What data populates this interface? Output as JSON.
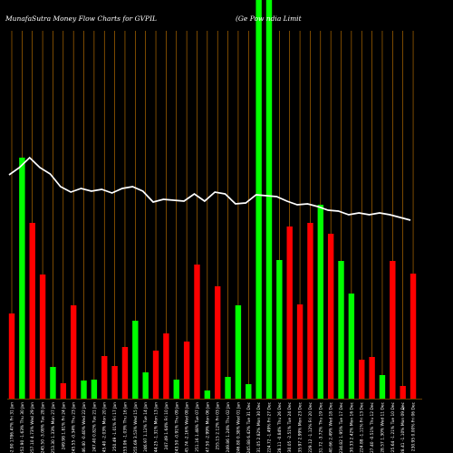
{
  "chart_data": {
    "type": "bar",
    "title": "MunafaSutra  Money Flow  Charts for GVPIL",
    "subtitle": "(Ge    Pow    ndia  Limit",
    "ylim": [
      0,
      440
    ],
    "grid": "vertical",
    "colors": {
      "up": "#00ff00",
      "down": "#ff0000",
      "line": "#ffffff",
      "grid": "#cc7a00",
      "background": "#000000"
    },
    "categories": [
      "252.90 1786.47% Fri 31 Jan",
      "252.90 -1.63% Thu 30 Jan",
      "257.10 4.73% Wed 29 Jan",
      "245.50 -3.08% Tue 28 Jan",
      "253.30 1.33% Mon 27 Jan",
      "249.98 1.81% Fri 24 Jan",
      "245.55 -0.34% Thu 23 Jan",
      "246.40 -0.40% Wed 22 Jan",
      "247.40 0.82% Tue 21 Jan",
      "245.40 -2.03% Mon 20 Jan",
      "250.49 -1.01% Fri 17 Jan",
      "253.06 -1.03% Thu 16 Jan",
      "255.69 3.53% Wed 15 Jan",
      "246.97 1.12% Tue 14 Jan",
      "244.25 -1.31% Mon 13 Jan",
      "247.49 1.64% Fri 10 Jan",
      "243.50 -0.91% Thu 09 Jan",
      "245.74 -2.16% Wed 08 Jan",
      "251.16 1.48% Tue 07 Jan",
      "247.50 -2.99% Mon 06 Jan",
      "255.15 2.12% Fri 03 Jan",
      "249.86 1.24% Thu 02 Jan",
      "246.80 0.38% Wed 01 Jan",
      "245.88 6.42% Tue 31 Dec",
      "231.05 2.82% Mon 30 Dec",
      "224.72 -1.49% Fri 27 Dec",
      "228.11 -0.84% Thu 26 Dec",
      "230.05 -2.51% Tue 24 Dec",
      "235.97 2.99% Mon 23 Dec",
      "229.12 -1.12% Fri 20 Dec",
      "231.72 -3.72% Thu 19 Dec",
      "240.66 2.49% Wed 18 Dec",
      "234.82 1.95% Tue 17 Dec",
      "230.33 2.42% Mon 16 Dec",
      "224.88 -1.11% Fri 13 Dec",
      "227.40 -0.51% Thu 12 Dec",
      "228.57 1.30% Wed 11 Dec",
      "225.64 -1.21% Tue 10 Dec",
      "228.41 -1.10% Mon 09 Dec",
      "230.95 0.00% Fri 06 Dec"
    ],
    "price_line": [
      193,
      185,
      174,
      185,
      192,
      206,
      212,
      208,
      211,
      209,
      213,
      208,
      206,
      211,
      223,
      220,
      221,
      222,
      214,
      222,
      212,
      214,
      225,
      224,
      215,
      216,
      217,
      222,
      226,
      225,
      228,
      232,
      233,
      237,
      235,
      237,
      235,
      237,
      240,
      243
    ],
    "series": [
      {
        "values": [
          94,
          266,
          194,
          137,
          35,
          17,
          103,
          20,
          21,
          47,
          36,
          57,
          86,
          29,
          53,
          72,
          21,
          63,
          148,
          9,
          124,
          24,
          103,
          16,
          440,
          440,
          153,
          190,
          104,
          194,
          214,
          182,
          152,
          116,
          43,
          46,
          26,
          152,
          14,
          138
        ],
        "up": [
          false,
          true,
          false,
          false,
          true,
          false,
          false,
          true,
          true,
          false,
          false,
          false,
          true,
          true,
          false,
          false,
          true,
          false,
          false,
          true,
          false,
          true,
          true,
          true,
          true,
          true,
          true,
          false,
          false,
          false,
          true,
          false,
          true,
          true,
          false,
          false,
          true,
          false,
          false,
          false
        ]
      }
    ]
  }
}
